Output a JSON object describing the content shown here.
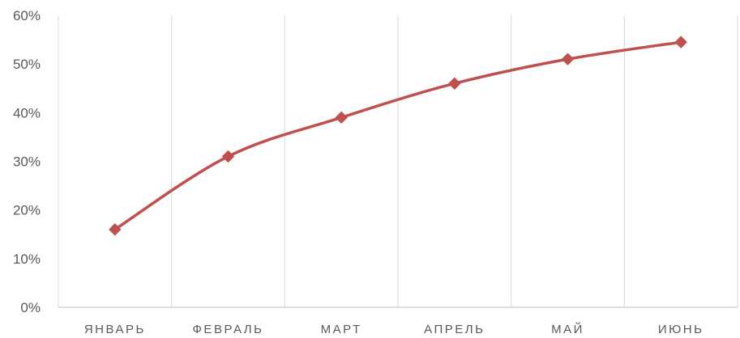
{
  "chart_data": {
    "type": "line",
    "title": "",
    "xlabel": "",
    "ylabel": "",
    "categories": [
      "ЯНВАРЬ",
      "ФЕВРАЛЬ",
      "МАРТ",
      "АПРЕЛЬ",
      "МАЙ",
      "ИЮНЬ"
    ],
    "series": [
      {
        "values": [
          0.16,
          0.31,
          0.39,
          0.46,
          0.51,
          0.545
        ],
        "color": "#c0504d",
        "marker": "diamond"
      }
    ],
    "ylim": [
      0,
      0.6
    ],
    "yticks": [
      0,
      0.1,
      0.2,
      0.3,
      0.4,
      0.5,
      0.6
    ],
    "ytick_labels": [
      "0%",
      "10%",
      "20%",
      "30%",
      "40%",
      "50%",
      "60%"
    ],
    "grid": "vertical category separators",
    "legend": "none",
    "line_style": "smoothed"
  }
}
